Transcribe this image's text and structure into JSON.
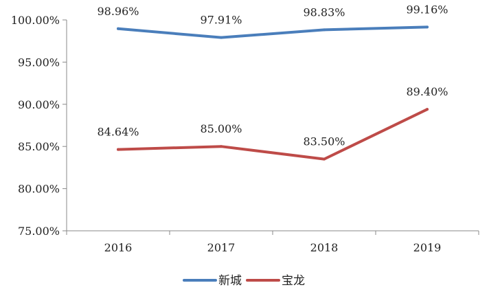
{
  "chart_data": {
    "type": "line",
    "title": "",
    "xlabel": "",
    "ylabel": "",
    "categories": [
      "2016",
      "2017",
      "2018",
      "2019"
    ],
    "series": [
      {
        "name": "新城",
        "values": [
          98.96,
          97.91,
          98.83,
          99.16
        ],
        "labels": [
          "98.96%",
          "97.91%",
          "98.83%",
          "99.16%"
        ],
        "color": "#4a7ebb"
      },
      {
        "name": "宝龙",
        "values": [
          84.64,
          85.0,
          83.5,
          89.4
        ],
        "labels": [
          "84.64%",
          "85.00%",
          "83.50%",
          "89.40%"
        ],
        "color": "#be4b48"
      }
    ],
    "ylim": [
      75,
      100
    ],
    "yticks": [
      75,
      80,
      85,
      90,
      95,
      100
    ],
    "ytick_labels": [
      "75.00%",
      "80.00%",
      "85.00%",
      "90.00%",
      "95.00%",
      "100.00%"
    ],
    "grid": false,
    "legend_position": "bottom-center"
  }
}
